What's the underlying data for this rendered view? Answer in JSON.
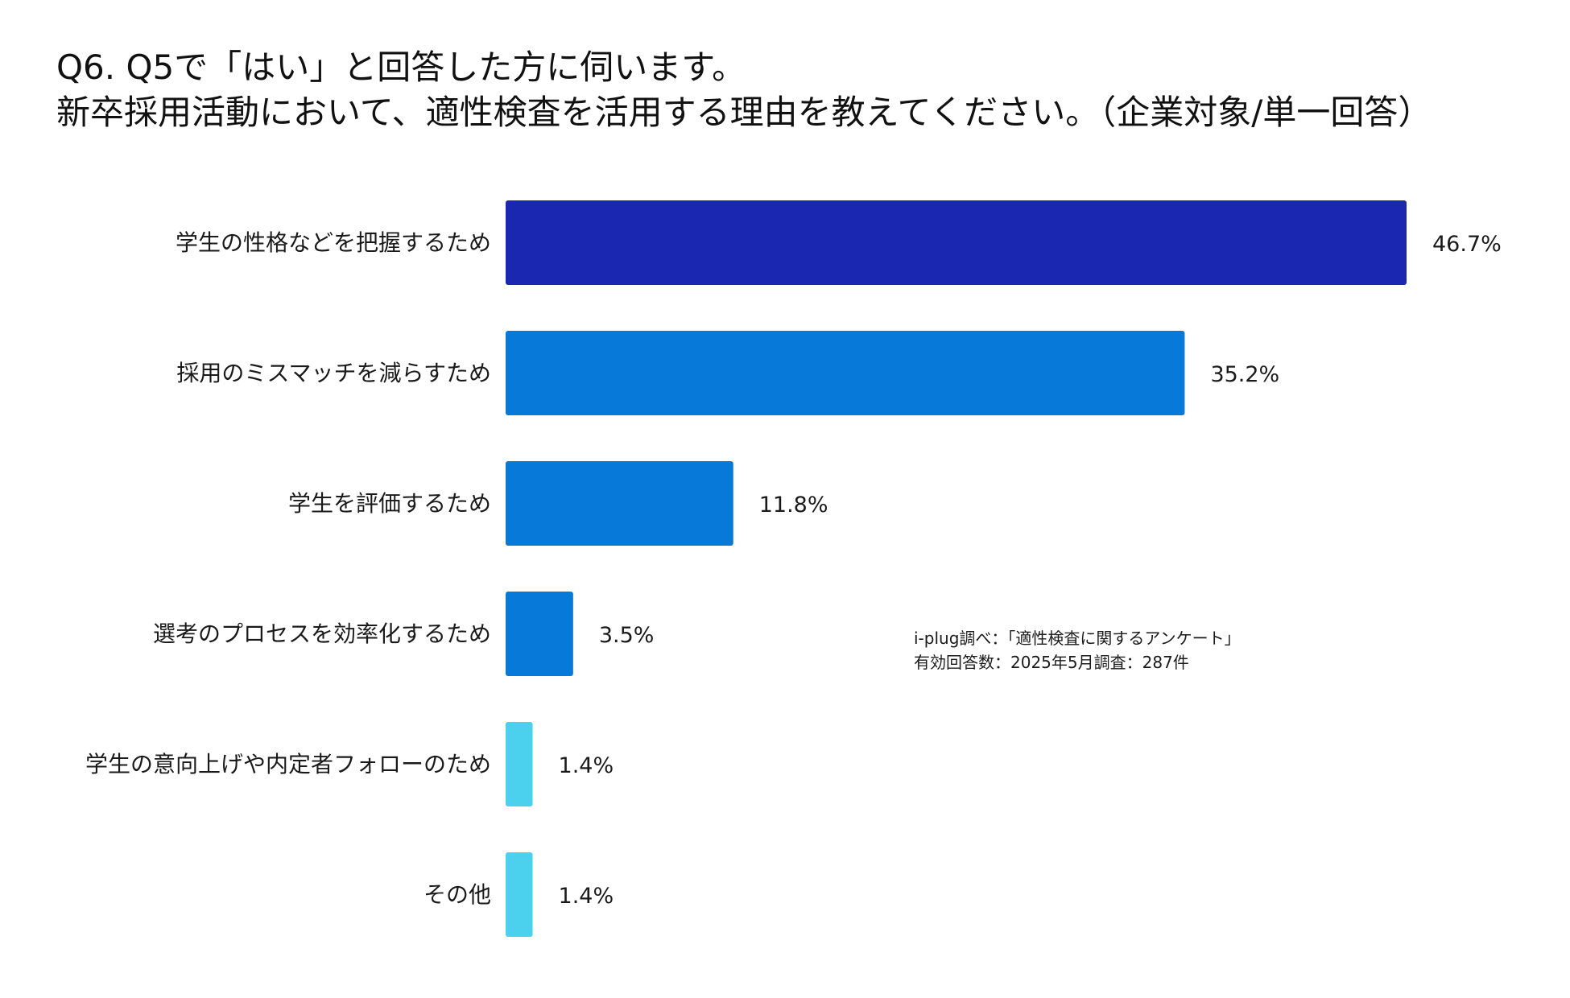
{
  "chart_data": {
    "type": "bar",
    "orientation": "horizontal",
    "title_lines": [
      "Q6. Q5で「はい」と回答した方に伺います。",
      "新卒採用活動において、適性検査を活用する理由を教えてください。（企業対象/単一回答）"
    ],
    "categories": [
      "学生の性格などを把握するため",
      "採用のミスマッチを減らすため",
      "学生を評価するため",
      "選考のプロセスを効率化するため",
      "学生の意向上げや内定者フォローのため",
      "その他"
    ],
    "values": [
      46.7,
      35.2,
      11.8,
      3.5,
      1.4,
      1.4
    ],
    "value_labels": [
      "46.7%",
      "35.2%",
      "11.8%",
      "3.5%",
      "1.4%",
      "1.4%"
    ],
    "bar_colors": [
      "#1a27b0",
      "#0679d9",
      "#0679d9",
      "#0679d9",
      "#4bd0ee",
      "#4bd0ee"
    ],
    "xlim": [
      0,
      46.7
    ],
    "grid": false,
    "legend": "none"
  },
  "source": {
    "line1": "i-plug調べ：「適性検査に関するアンケート」",
    "line2": "有効回答数：2025年5月調査：287件"
  }
}
